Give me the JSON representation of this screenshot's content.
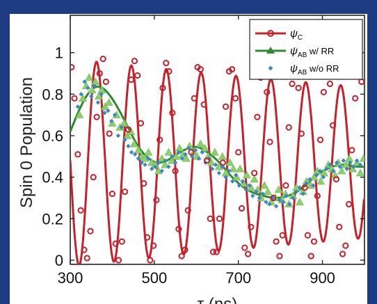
{
  "chart_data": {
    "type": "line",
    "xlabel": "τ (ns)",
    "ylabel": "Spin 0 Population",
    "xlim": [
      300,
      1000
    ],
    "ylim": [
      -0.02,
      1.18
    ],
    "xticks": [
      300,
      500,
      700,
      900
    ],
    "xtick_labels": [
      "300",
      "500",
      "700",
      "900"
    ],
    "yticks": [
      0,
      0.2,
      0.4,
      0.6,
      0.8,
      1
    ],
    "ytick_labels": [
      "0",
      "0.2",
      "0.4",
      "0.6",
      "0.8",
      "1"
    ],
    "legend_position": "top-right",
    "legend": [
      {
        "symbol": "ψ",
        "subscript": "C",
        "suffix": ""
      },
      {
        "symbol": "ψ",
        "subscript": "AB",
        "suffix": " w/ RR"
      },
      {
        "symbol": "ψ",
        "subscript": "AB",
        "suffix": " w/o RR"
      }
    ],
    "series": [
      {
        "name": "ψC",
        "kind": "line+open-circles",
        "color": "#c8202a",
        "model": {
          "offset": 0.47,
          "amplitude": 0.5,
          "decay_ns": 2200,
          "frequency_per_ns": 0.01205,
          "phase": 1.55
        },
        "x": [
          303,
          310,
          318,
          325,
          333,
          340,
          348,
          355,
          363,
          370,
          378,
          385,
          393,
          400,
          408,
          415,
          423,
          430,
          438,
          445,
          453,
          460,
          468,
          475,
          483,
          490,
          498,
          505,
          513,
          520,
          528,
          535,
          543,
          550,
          558,
          565,
          573,
          580,
          588,
          595,
          603,
          610,
          618,
          625,
          633,
          640,
          648,
          655,
          663,
          670,
          678,
          685,
          693,
          700,
          708,
          715,
          723,
          730,
          738,
          745,
          753,
          760,
          768,
          775,
          783,
          790,
          798,
          805,
          813,
          820,
          828,
          835,
          843,
          850,
          858,
          865,
          873,
          880,
          888,
          895,
          903,
          910,
          918,
          925,
          933,
          940,
          948,
          955,
          963,
          970,
          978,
          985,
          993
        ],
        "y": [
          0.93,
          0.78,
          0.51,
          0.24,
          0.05,
          0.01,
          0.14,
          0.4,
          0.69,
          0.9,
          0.97,
          0.86,
          0.61,
          0.32,
          0.08,
          0.0,
          0.09,
          0.33,
          0.63,
          0.87,
          0.96,
          0.89,
          0.66,
          0.37,
          0.11,
          0.0,
          0.07,
          0.29,
          0.58,
          0.83,
          0.95,
          0.91,
          0.71,
          0.43,
          0.15,
          0.02,
          0.05,
          0.24,
          0.52,
          0.78,
          0.93,
          0.92,
          0.75,
          0.48,
          0.2,
          0.04,
          0.04,
          0.2,
          0.47,
          0.74,
          0.91,
          0.92,
          0.78,
          0.52,
          0.25,
          0.06,
          0.03,
          0.16,
          0.42,
          0.69,
          0.88,
          0.92,
          0.81,
          0.57,
          0.3,
          0.09,
          0.02,
          0.12,
          0.36,
          0.64,
          0.85,
          0.91,
          0.83,
          0.61,
          0.35,
          0.12,
          0.02,
          0.09,
          0.31,
          0.58,
          0.81,
          0.9,
          0.85,
          0.65,
          0.39,
          0.16,
          0.03,
          0.07,
          0.27,
          0.53,
          0.78,
          0.89,
          0.86
        ]
      },
      {
        "name": "ψAB w/ RR",
        "kind": "line+triangles",
        "color": "#2f8a2f",
        "marker_color": "#8ccf6c",
        "x": [
          300,
          320,
          340,
          360,
          380,
          400,
          420,
          440,
          460,
          480,
          500,
          520,
          540,
          560,
          580,
          600,
          620,
          640,
          660,
          680,
          700,
          720,
          740,
          760,
          780,
          800,
          820,
          840,
          860,
          880,
          900,
          920,
          940,
          960,
          980,
          1000
        ],
        "y": [
          0.62,
          0.72,
          0.8,
          0.84,
          0.83,
          0.78,
          0.71,
          0.63,
          0.55,
          0.5,
          0.47,
          0.47,
          0.49,
          0.52,
          0.54,
          0.55,
          0.53,
          0.5,
          0.46,
          0.41,
          0.37,
          0.34,
          0.32,
          0.31,
          0.3,
          0.3,
          0.31,
          0.33,
          0.36,
          0.4,
          0.43,
          0.45,
          0.46,
          0.46,
          0.45,
          0.45
        ],
        "markers_x": [
          322,
          330,
          338,
          345,
          352,
          360,
          368,
          375,
          383,
          392,
          400,
          410,
          418,
          428,
          436,
          444,
          452,
          462,
          470,
          478,
          486,
          494,
          502,
          510,
          518,
          526,
          534,
          542,
          552,
          560,
          568,
          576,
          584,
          594,
          602,
          610,
          620,
          628,
          636,
          644,
          654,
          662,
          670,
          680,
          688,
          696,
          704,
          712,
          720,
          730,
          738,
          746,
          754,
          762,
          770,
          778,
          788,
          796,
          804,
          812,
          820,
          830,
          838,
          846,
          854,
          862,
          872,
          880,
          888,
          896,
          904,
          914,
          922,
          930,
          938,
          946,
          956,
          964,
          972,
          982,
          990,
          998
        ],
        "markers_y": [
          0.7,
          0.78,
          0.84,
          0.88,
          0.82,
          0.86,
          0.79,
          0.82,
          0.74,
          0.76,
          0.66,
          0.7,
          0.64,
          0.66,
          0.6,
          0.62,
          0.56,
          0.53,
          0.5,
          0.49,
          0.52,
          0.47,
          0.46,
          0.43,
          0.49,
          0.46,
          0.52,
          0.48,
          0.5,
          0.54,
          0.51,
          0.49,
          0.55,
          0.52,
          0.5,
          0.56,
          0.54,
          0.5,
          0.47,
          0.52,
          0.45,
          0.5,
          0.42,
          0.47,
          0.44,
          0.4,
          0.44,
          0.37,
          0.41,
          0.35,
          0.39,
          0.34,
          0.3,
          0.36,
          0.33,
          0.28,
          0.3,
          0.34,
          0.29,
          0.32,
          0.27,
          0.31,
          0.35,
          0.28,
          0.33,
          0.38,
          0.36,
          0.4,
          0.43,
          0.38,
          0.42,
          0.46,
          0.44,
          0.41,
          0.47,
          0.43,
          0.46,
          0.49,
          0.44,
          0.47,
          0.42,
          0.49
        ]
      },
      {
        "name": "ψAB w/o RR",
        "kind": "diamonds",
        "color": "#3a86c8",
        "x": [
          318,
          326,
          334,
          342,
          350,
          358,
          366,
          374,
          382,
          390,
          398,
          406,
          414,
          422,
          430,
          438,
          446,
          454,
          462,
          470,
          478,
          486,
          494,
          502,
          510,
          518,
          526,
          534,
          542,
          550,
          558,
          566,
          574,
          582,
          590,
          598,
          606,
          614,
          622,
          630,
          638,
          646,
          654,
          662,
          670,
          678,
          686,
          694,
          702,
          710,
          718,
          726,
          734,
          742,
          750,
          758,
          766,
          774,
          782,
          790,
          798,
          806,
          814,
          822,
          830,
          838,
          846,
          854,
          862,
          870,
          878,
          886,
          894,
          902,
          910,
          918,
          926,
          934,
          942,
          950,
          958,
          966,
          974,
          982,
          990
        ],
        "y": [
          0.74,
          0.8,
          0.86,
          0.83,
          0.79,
          0.84,
          0.76,
          0.8,
          0.71,
          0.72,
          0.67,
          0.7,
          0.6,
          0.64,
          0.58,
          0.55,
          0.52,
          0.51,
          0.49,
          0.47,
          0.46,
          0.49,
          0.44,
          0.45,
          0.47,
          0.43,
          0.48,
          0.45,
          0.5,
          0.47,
          0.52,
          0.49,
          0.51,
          0.54,
          0.5,
          0.53,
          0.49,
          0.52,
          0.47,
          0.49,
          0.44,
          0.46,
          0.42,
          0.45,
          0.4,
          0.43,
          0.38,
          0.41,
          0.36,
          0.38,
          0.34,
          0.36,
          0.31,
          0.33,
          0.3,
          0.32,
          0.28,
          0.27,
          0.3,
          0.26,
          0.29,
          0.28,
          0.31,
          0.27,
          0.3,
          0.33,
          0.35,
          0.32,
          0.37,
          0.39,
          0.36,
          0.41,
          0.43,
          0.4,
          0.44,
          0.46,
          0.43,
          0.47,
          0.45,
          0.48,
          0.44,
          0.47,
          0.45,
          0.48,
          0.46
        ]
      }
    ]
  }
}
